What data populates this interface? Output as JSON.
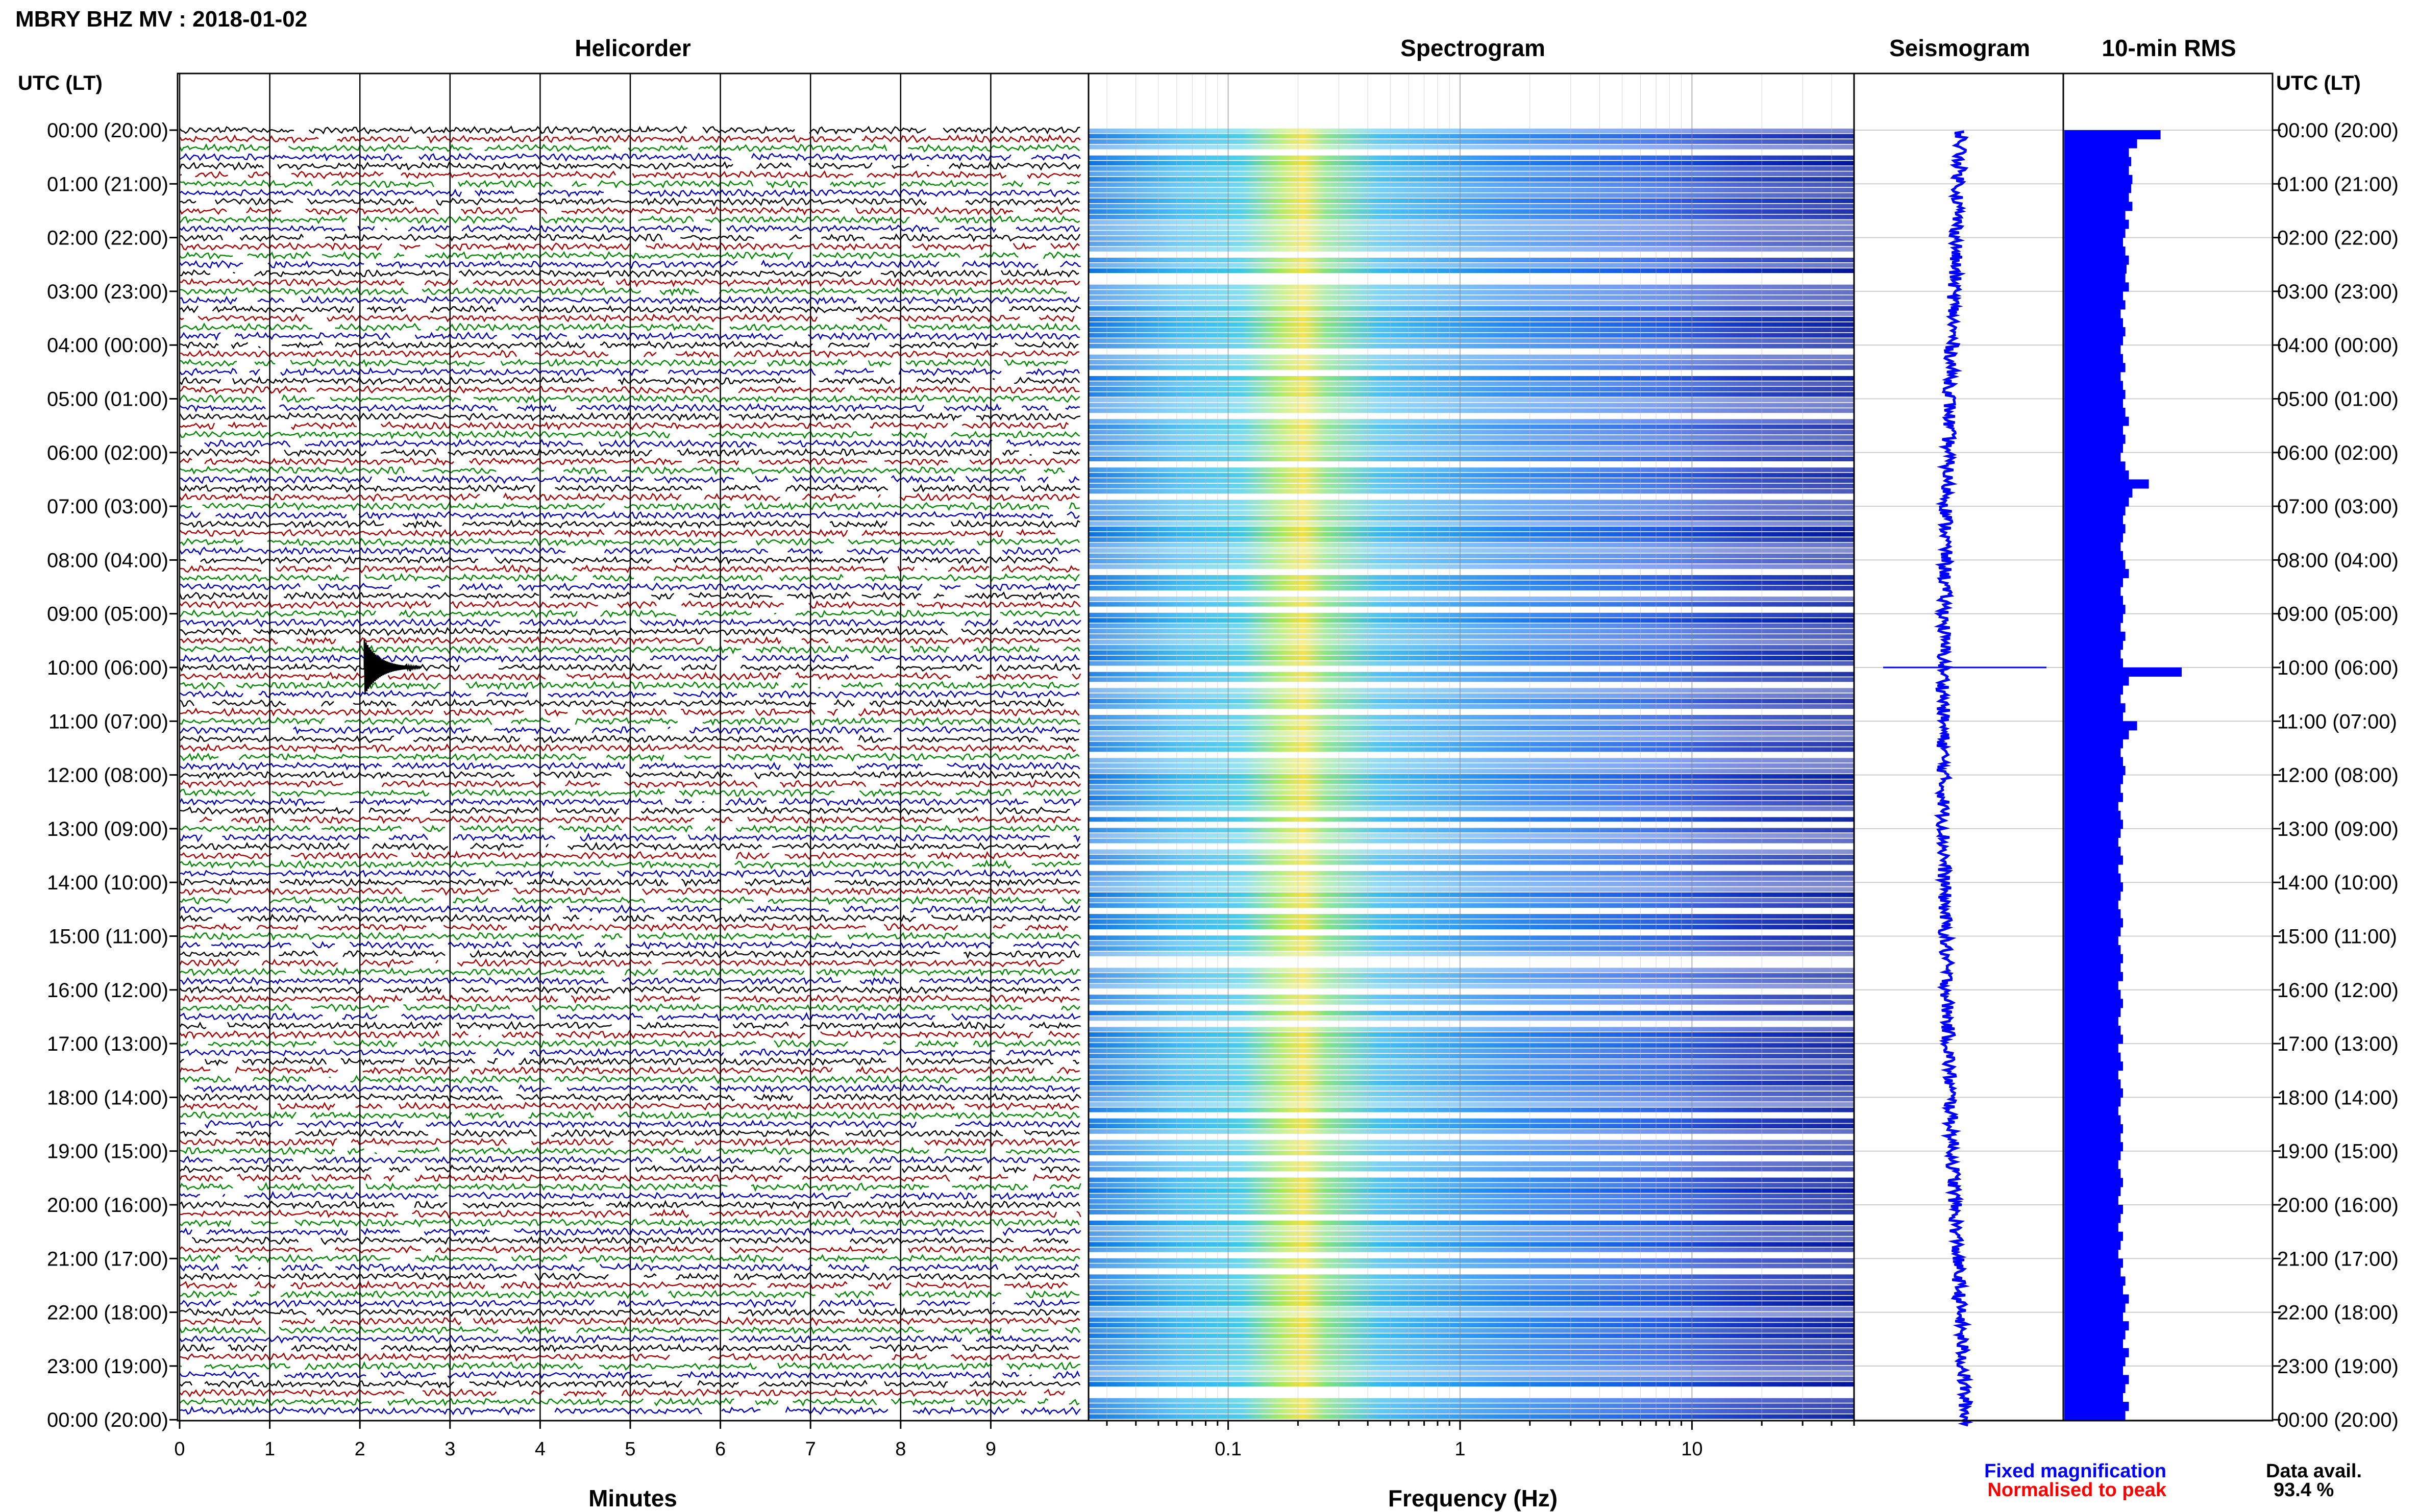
{
  "header": {
    "station_title": "MBRY BHZ MV : 2018-01-02",
    "utc_label_left": "UTC (LT)",
    "utc_label_right": "UTC (LT)"
  },
  "chart_data": [
    {
      "type": "line",
      "title": "Helicorder",
      "xlabel": "Minutes",
      "ylabel": "",
      "xlim": [
        0,
        10
      ],
      "xticks": [
        "0",
        "1",
        "2",
        "3",
        "4",
        "5",
        "6",
        "7",
        "8",
        "9"
      ],
      "row_count": 144,
      "trace_colors": [
        "#000000",
        "#aa0000",
        "#008800",
        "#0000bb"
      ],
      "event": {
        "time_utc": "10:00",
        "minute": 2.05,
        "description_visible": false
      }
    },
    {
      "type": "heatmap",
      "title": "Spectrogram",
      "xlabel": "Frequency (Hz)",
      "xscale": "log",
      "xlim": [
        0.025,
        50
      ],
      "xticks": [
        "0.1",
        "1",
        "10"
      ],
      "colormap": [
        "#00008b",
        "#0033ff",
        "#00aaff",
        "#33ddcc",
        "#ccff44",
        "#ffdd00"
      ]
    },
    {
      "type": "line",
      "title": "Seismogram",
      "xlabel": "",
      "series_color": "#0000ff"
    },
    {
      "type": "bar",
      "title": "10-min RMS",
      "xlabel": "",
      "series_color": "#0000ff",
      "values_relative": [
        0.82,
        0.62,
        0.55,
        0.57,
        0.55,
        0.58,
        0.57,
        0.55,
        0.58,
        0.52,
        0.55,
        0.52,
        0.5,
        0.52,
        0.55,
        0.53,
        0.52,
        0.55,
        0.5,
        0.52,
        0.48,
        0.5,
        0.52,
        0.5,
        0.48,
        0.5,
        0.52,
        0.48,
        0.5,
        0.52,
        0.5,
        0.52,
        0.55,
        0.5,
        0.52,
        0.5,
        0.48,
        0.52,
        0.55,
        0.72,
        0.58,
        0.55,
        0.52,
        0.5,
        0.52,
        0.5,
        0.48,
        0.5,
        0.52,
        0.55,
        0.5,
        0.48,
        0.5,
        0.52,
        0.5,
        0.48,
        0.52,
        0.5,
        0.48,
        0.5,
        1.0,
        0.55,
        0.5,
        0.48,
        0.52,
        0.5,
        0.62,
        0.55,
        0.5,
        0.48,
        0.5,
        0.52,
        0.5,
        0.48,
        0.5,
        0.46,
        0.48,
        0.5,
        0.48,
        0.46,
        0.48,
        0.5,
        0.46,
        0.48,
        0.5,
        0.48,
        0.46,
        0.48,
        0.5,
        0.48,
        0.46,
        0.48,
        0.5,
        0.48,
        0.5,
        0.46,
        0.48,
        0.5,
        0.48,
        0.46,
        0.48,
        0.5,
        0.46,
        0.48,
        0.5,
        0.46,
        0.48,
        0.5,
        0.48,
        0.46,
        0.48,
        0.5,
        0.48,
        0.5,
        0.48,
        0.46,
        0.48,
        0.5,
        0.48,
        0.46,
        0.5,
        0.48,
        0.46,
        0.5,
        0.48,
        0.46,
        0.5,
        0.48,
        0.52,
        0.5,
        0.55,
        0.52,
        0.5,
        0.55,
        0.52,
        0.5,
        0.55,
        0.52,
        0.5,
        0.55,
        0.52,
        0.5,
        0.55,
        0.52
      ]
    }
  ],
  "time_axis": {
    "labels": [
      "00:00 (20:00)",
      "01:00 (21:00)",
      "02:00 (22:00)",
      "03:00 (23:00)",
      "04:00 (00:00)",
      "05:00 (01:00)",
      "06:00 (02:00)",
      "07:00 (03:00)",
      "08:00 (04:00)",
      "09:00 (05:00)",
      "10:00 (06:00)",
      "11:00 (07:00)",
      "12:00 (08:00)",
      "13:00 (09:00)",
      "14:00 (10:00)",
      "15:00 (11:00)",
      "16:00 (12:00)",
      "17:00 (13:00)",
      "18:00 (14:00)",
      "19:00 (15:00)",
      "20:00 (16:00)",
      "21:00 (17:00)",
      "22:00 (18:00)",
      "23:00 (19:00)",
      "00:00 (20:00)"
    ]
  },
  "legend": {
    "fixed_label": "Fixed magnification",
    "fixed_color": "#0000ff",
    "normalised_label": "Normalised to peak",
    "normalised_color": "#ff0000"
  },
  "availability": {
    "label": "Data avail.",
    "value": "93.4 %"
  }
}
